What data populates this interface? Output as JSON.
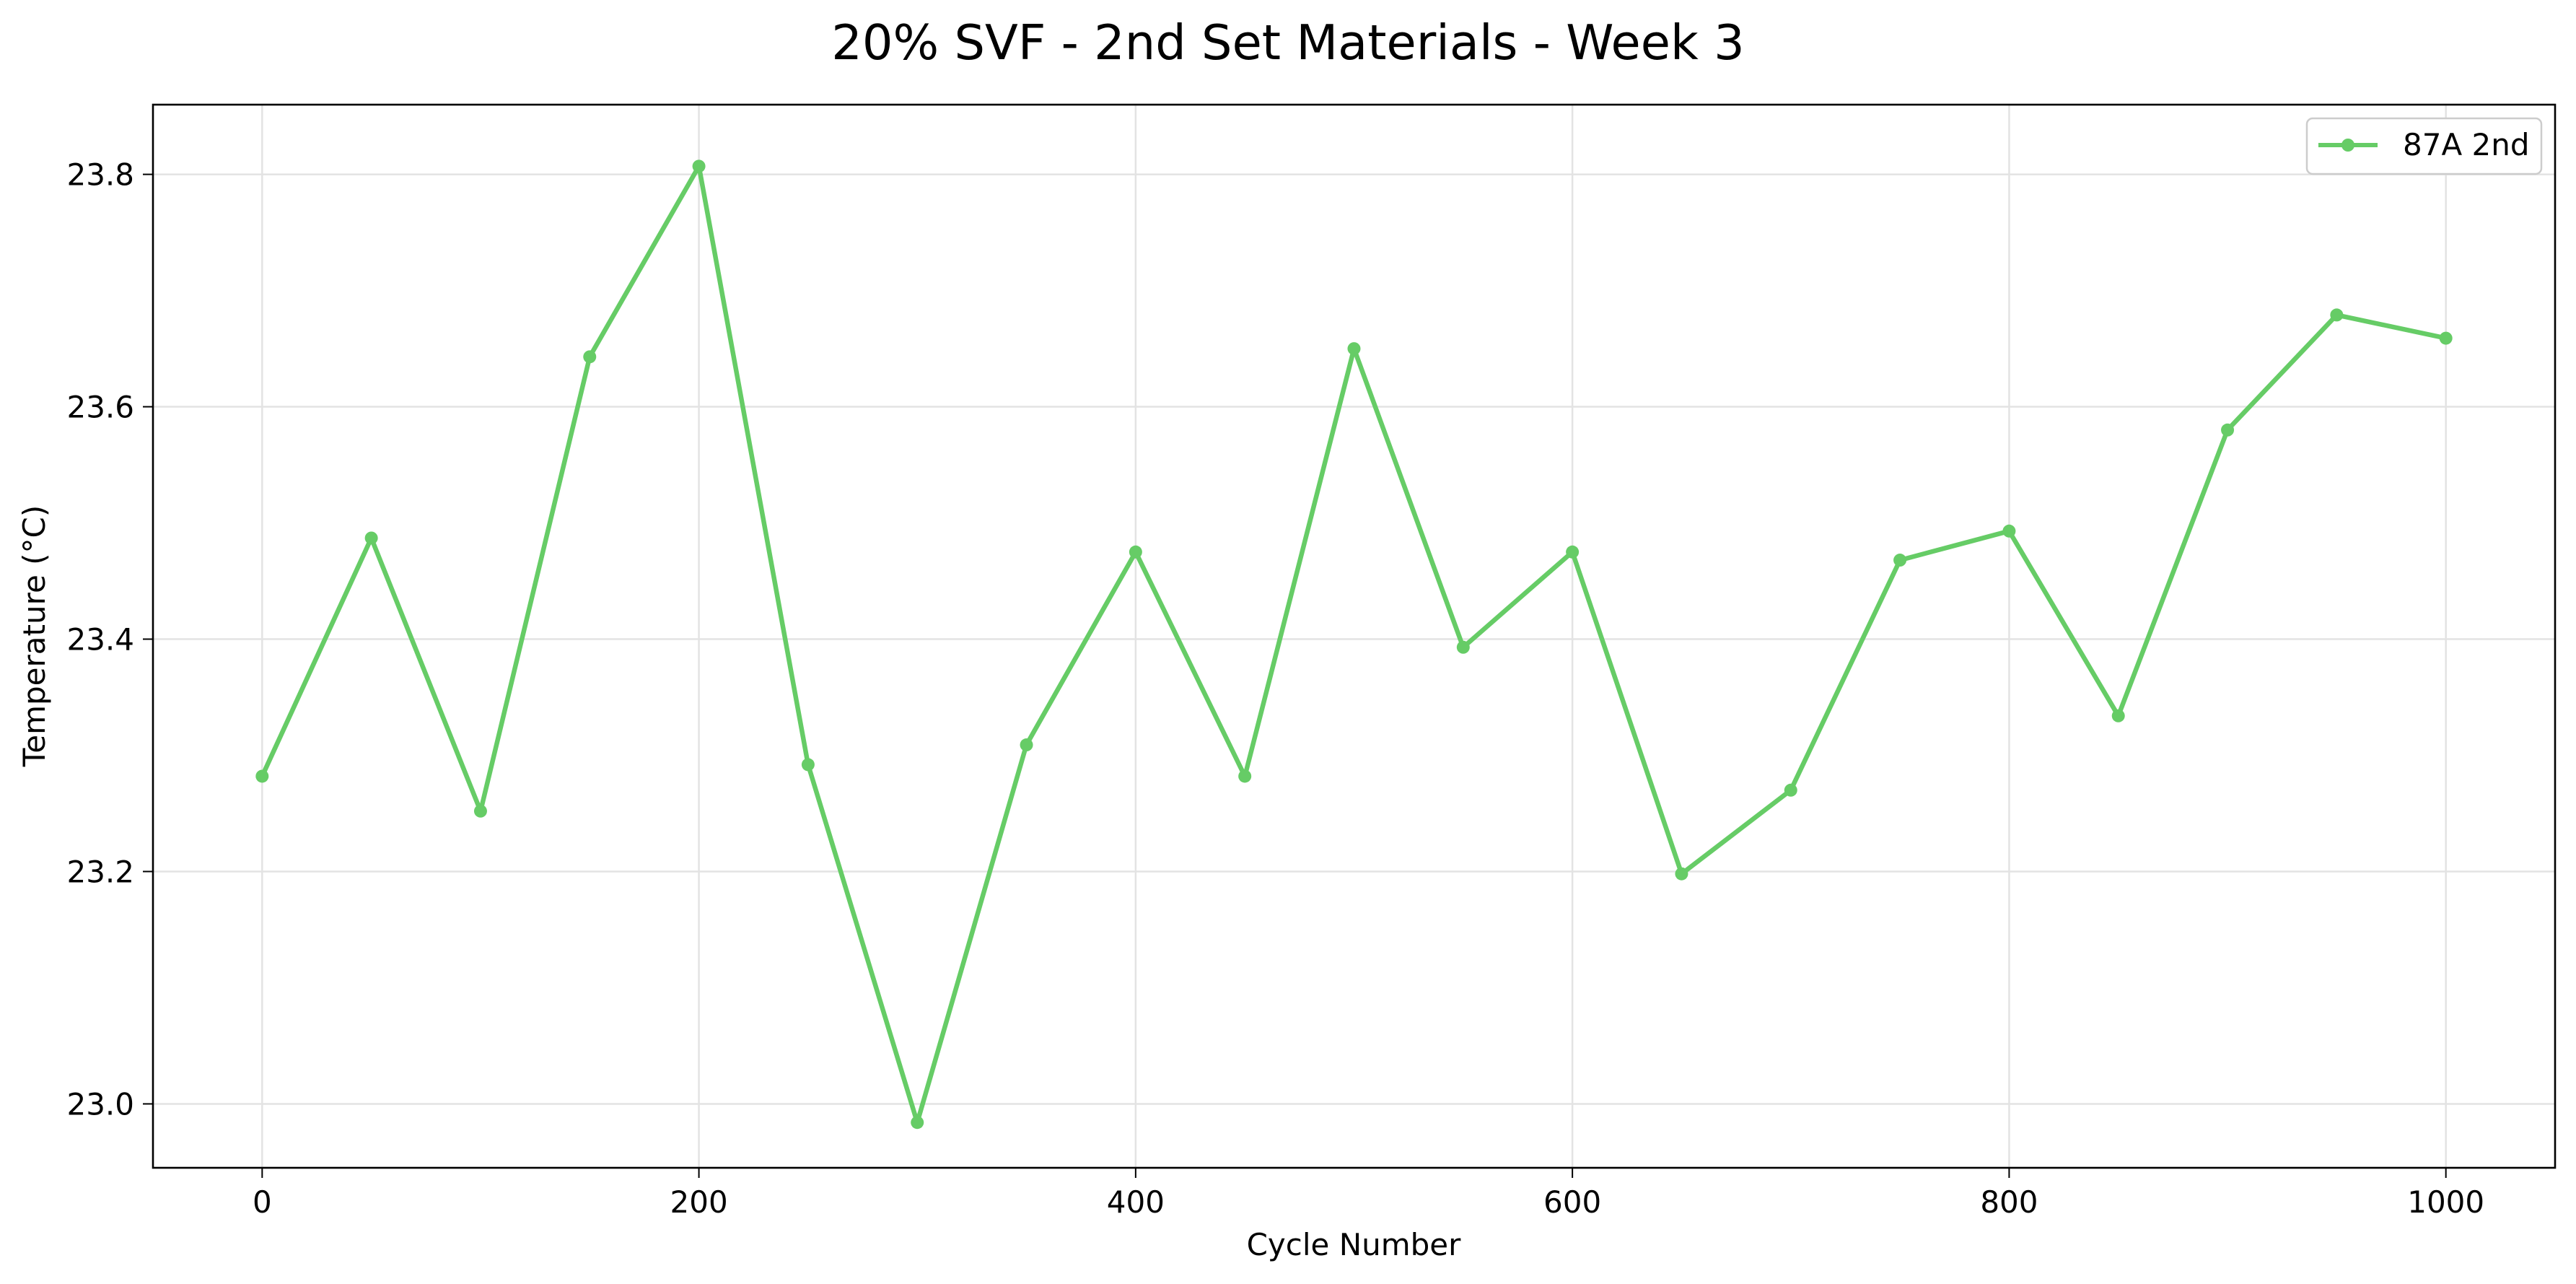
{
  "chart_data": {
    "type": "line",
    "title": "20% SVF - 2nd Set Materials - Week 3",
    "xlabel": "Cycle Number",
    "ylabel": "Temperature (°C)",
    "xlim": [
      -50,
      1050
    ],
    "ylim": [
      22.945,
      23.86
    ],
    "x_ticks": [
      0,
      200,
      400,
      600,
      800,
      1000
    ],
    "x_tick_labels": [
      "0",
      "200",
      "400",
      "600",
      "800",
      "1000"
    ],
    "y_ticks": [
      23.0,
      23.2,
      23.4,
      23.6,
      23.8
    ],
    "y_tick_labels": [
      "23.0",
      "23.2",
      "23.4",
      "23.6",
      "23.8"
    ],
    "grid": true,
    "legend_position": "top-right",
    "series": [
      {
        "name": "87A 2nd",
        "color": "#66cc66",
        "marker": "circle",
        "x": [
          0,
          50,
          100,
          150,
          200,
          250,
          300,
          350,
          400,
          450,
          500,
          550,
          600,
          650,
          700,
          750,
          800,
          850,
          900,
          950,
          1000
        ],
        "y": [
          23.282,
          23.487,
          23.252,
          23.643,
          23.807,
          23.292,
          22.984,
          23.309,
          23.475,
          23.282,
          23.65,
          23.393,
          23.475,
          23.198,
          23.27,
          23.468,
          23.493,
          23.334,
          23.58,
          23.679,
          23.659
        ]
      }
    ]
  }
}
